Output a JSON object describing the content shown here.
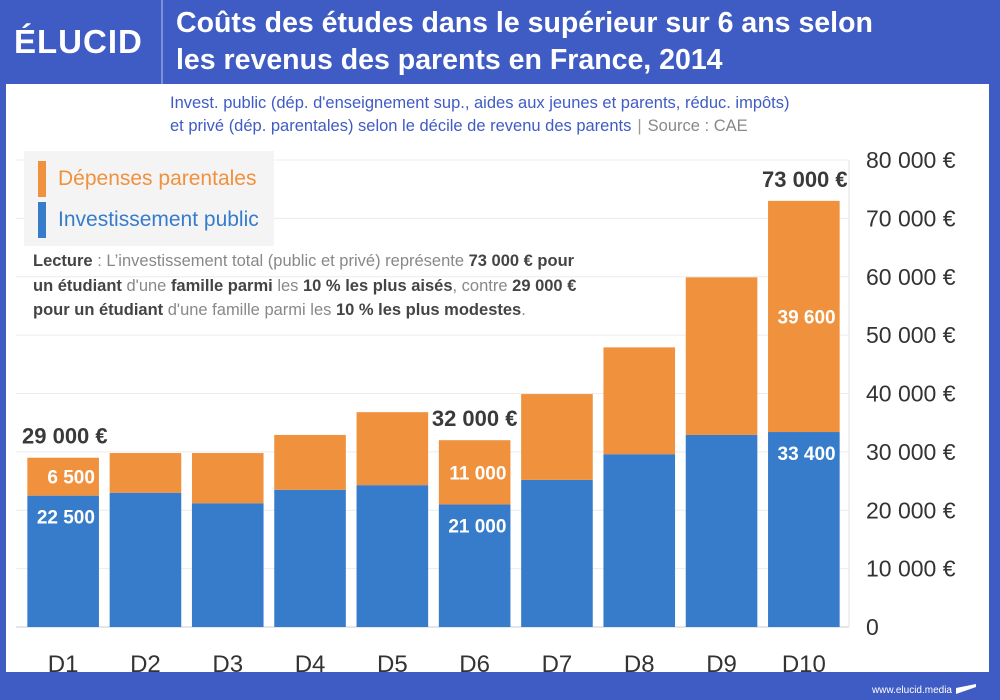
{
  "header": {
    "logo": "ÉLUCID",
    "title_line1": "Coûts des études dans le supérieur sur 6 ans selon",
    "title_line2": "les revenus des parents en France, 2014",
    "subtitle_line1": "Invest. public (dép. d'enseignement sup., aides aux jeunes et parents, réduc. impôts)",
    "subtitle_line2": "et privé (dép. parentales) selon le décile de revenu des parents",
    "source": "Source : CAE"
  },
  "legend": {
    "items": [
      {
        "label": "Dépenses parentales",
        "color": "#f0913d"
      },
      {
        "label": "Investissement public",
        "color": "#377ccb"
      }
    ]
  },
  "lecture": {
    "t1": "Lecture",
    "t2": " : L’investissement total (public et privé) représente ",
    "t3": "73 000 € pour un étudiant",
    "t4": " d'une ",
    "t5": "famille parmi",
    "t6": " les ",
    "t7": "10 % les plus aisés",
    "t8": ", contre ",
    "t9": "29 000 € pour un étudiant",
    "t10": " d'une famille parmi les ",
    "t11": "10 % les plus modestes",
    "t12": "."
  },
  "footer": {
    "url": "www.elucid.media"
  },
  "colors": {
    "accent": "#3f5bc4",
    "orange": "#f0913d",
    "blue": "#377ccb"
  },
  "chart_data": {
    "type": "bar",
    "stacked": true,
    "title": "Coûts des études dans le supérieur sur 6 ans selon les revenus des parents en France, 2014",
    "xlabel": "",
    "ylabel": "",
    "categories": [
      "D1",
      "D2",
      "D3",
      "D4",
      "D5",
      "D6",
      "D7",
      "D8",
      "D9",
      "D10"
    ],
    "series": [
      {
        "name": "Investissement public",
        "color": "#377ccb",
        "values": [
          22500,
          23000,
          21200,
          23500,
          24300,
          21000,
          25200,
          29600,
          32900,
          33400
        ]
      },
      {
        "name": "Dépenses parentales",
        "color": "#f0913d",
        "values": [
          6500,
          6800,
          8600,
          9400,
          12500,
          11000,
          14700,
          18300,
          27000,
          39600
        ]
      }
    ],
    "segment_labels": [
      {
        "category": "D1",
        "series": "Dépenses parentales",
        "text": "6 500"
      },
      {
        "category": "D1",
        "series": "Investissement public",
        "text": "22 500"
      },
      {
        "category": "D6",
        "series": "Dépenses parentales",
        "text": "11 000"
      },
      {
        "category": "D6",
        "series": "Investissement public",
        "text": "21 000"
      },
      {
        "category": "D10",
        "series": "Dépenses parentales",
        "text": "39 600"
      },
      {
        "category": "D10",
        "series": "Investissement public",
        "text": "33 400"
      }
    ],
    "total_labels": [
      {
        "category": "D1",
        "text": "29 000 €"
      },
      {
        "category": "D6",
        "text": "32 000 €"
      },
      {
        "category": "D10",
        "text": "73 000 €"
      }
    ],
    "ylim": [
      0,
      80000
    ],
    "yticks": [
      0,
      10000,
      20000,
      30000,
      40000,
      50000,
      60000,
      70000,
      80000
    ],
    "ytick_labels": [
      "0",
      "10 000 €",
      "20 000 €",
      "30 000 €",
      "40 000 €",
      "50 000 €",
      "60 000 €",
      "70 000 €",
      "80 000 €"
    ],
    "y_axis_side": "right",
    "grid": true,
    "legend_position": "top-left"
  }
}
